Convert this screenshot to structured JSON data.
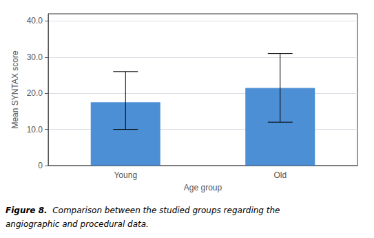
{
  "chart_data": {
    "type": "bar",
    "categories": [
      "Young",
      "Old"
    ],
    "values": [
      17.5,
      21.5
    ],
    "error_low": [
      7.5,
      9.5
    ],
    "error_high": [
      8.5,
      9.5
    ],
    "color": "#4d8fd4",
    "xlabel": "Age group",
    "ylabel": "Mean SYNTAX score",
    "ylim": [
      0,
      42
    ],
    "yticks": [
      0,
      {
        "value": 10,
        "label": "10.0"
      },
      {
        "value": 20,
        "label": "20.0"
      },
      {
        "value": 30,
        "label": "30.0"
      },
      {
        "value": 40,
        "label": "40.0"
      }
    ],
    "grid": true,
    "annotations": [
      "Figure 8.",
      "Comparison between the studied groups regarding the",
      "angiographic and procedural data."
    ]
  }
}
